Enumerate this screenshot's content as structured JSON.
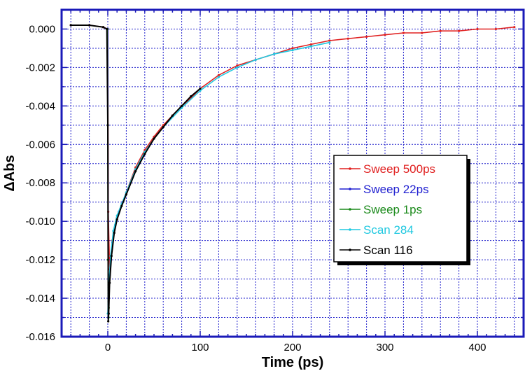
{
  "chart_data": {
    "type": "line",
    "xlabel": "Time (ps)",
    "ylabel": "ΔAbs",
    "xlim": [
      -50,
      450
    ],
    "ylim": [
      -0.016,
      0.001
    ],
    "x_ticks": [
      0,
      100,
      200,
      300,
      400
    ],
    "x_tick_labels": [
      "0",
      "100",
      "200",
      "300",
      "400"
    ],
    "y_ticks": [
      0.0,
      -0.002,
      -0.004,
      -0.006,
      -0.008,
      -0.01,
      -0.012,
      -0.014,
      -0.016
    ],
    "y_tick_labels": [
      "0.000",
      "-0.002",
      "-0.004",
      "-0.006",
      "-0.008",
      "-0.010",
      "-0.012",
      "-0.014",
      "-0.016"
    ],
    "grid": true,
    "legend_position": "center-right",
    "colors": {
      "frame": "#1a1ab8",
      "grid": "#2222cc"
    },
    "series": [
      {
        "name": "Sweep 500ps",
        "color": "#e02020",
        "x": [
          -40,
          -20,
          -5,
          0,
          0.5,
          2,
          5,
          10,
          20,
          30,
          40,
          50,
          60,
          70,
          80,
          90,
          100,
          120,
          140,
          160,
          180,
          200,
          220,
          240,
          260,
          280,
          300,
          320,
          340,
          360,
          380,
          400,
          420,
          440
        ],
        "y": [
          0.0002,
          0.0002,
          0.0001,
          0.0,
          -0.0095,
          -0.0125,
          -0.011,
          -0.0098,
          -0.0085,
          -0.0072,
          -0.0063,
          -0.0056,
          -0.005,
          -0.0045,
          -0.004,
          -0.0036,
          -0.0031,
          -0.0024,
          -0.0019,
          -0.0016,
          -0.0013,
          -0.001,
          -0.0008,
          -0.0006,
          -0.0005,
          -0.0004,
          -0.0003,
          -0.0002,
          -0.0002,
          -0.0001,
          -0.0001,
          0.0,
          0.0,
          0.0001
        ]
      },
      {
        "name": "Sweep 22ps",
        "color": "#2020d0",
        "x": [
          0,
          0.5,
          1,
          2,
          3,
          5,
          8,
          12,
          16,
          20
        ],
        "y": [
          0.0,
          -0.015,
          -0.014,
          -0.0128,
          -0.012,
          -0.0111,
          -0.0102,
          -0.0095,
          -0.009,
          -0.0085
        ]
      },
      {
        "name": "Sweep 1ps",
        "color": "#1a8a1a",
        "x": [
          -0.5,
          0,
          0.2,
          0.5,
          0.8,
          1
        ],
        "y": [
          0.0,
          -0.005,
          -0.012,
          -0.0148,
          -0.015,
          -0.0145
        ]
      },
      {
        "name": "Scan 284",
        "color": "#20c8e0",
        "x": [
          0,
          1,
          3,
          6,
          10,
          15,
          20,
          30,
          40,
          50,
          60,
          80,
          100,
          120,
          140,
          160,
          180,
          200,
          220,
          240
        ],
        "y": [
          -0.0148,
          -0.0135,
          -0.0118,
          -0.0105,
          -0.0097,
          -0.0091,
          -0.0085,
          -0.0073,
          -0.0064,
          -0.0057,
          -0.0051,
          -0.0041,
          -0.0032,
          -0.0025,
          -0.002,
          -0.0016,
          -0.0013,
          -0.0011,
          -0.0009,
          -0.0007
        ]
      },
      {
        "name": "Scan 116",
        "color": "#000000",
        "x": [
          -40,
          -20,
          -5,
          -1,
          0,
          0.5,
          1,
          2,
          4,
          7,
          10,
          15,
          20,
          30,
          40,
          50,
          60,
          70,
          80,
          90,
          100
        ],
        "y": [
          0.0002,
          0.0002,
          0.0001,
          0.0,
          -0.005,
          -0.0152,
          -0.0148,
          -0.0132,
          -0.0118,
          -0.0106,
          -0.0099,
          -0.0092,
          -0.0086,
          -0.0074,
          -0.0065,
          -0.0057,
          -0.0051,
          -0.0045,
          -0.004,
          -0.0035,
          -0.0031
        ]
      }
    ]
  }
}
